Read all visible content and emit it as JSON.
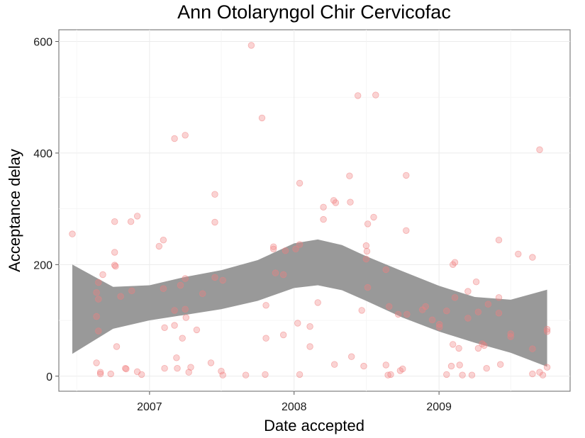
{
  "chart_data": {
    "type": "scatter",
    "title": "Ann Otolaryngol Chir Cervicofac",
    "xlabel": "Date accepted",
    "ylabel": "Acceptance delay",
    "x_ticks": [
      "2007",
      "2008",
      "2009"
    ],
    "y_ticks": [
      "0",
      "200",
      "400",
      "600"
    ],
    "xlim": [
      "2006-05-17",
      "2009-11-28"
    ],
    "ylim": [
      -27,
      621
    ],
    "grid": true,
    "point_color": "#f08080",
    "band_color": "#999999",
    "series": [
      {
        "values": [
          {
            "x": "2006-06-20",
            "y": 255
          },
          {
            "x": "2006-08-20",
            "y": 24
          },
          {
            "x": "2006-08-20",
            "y": 107
          },
          {
            "x": "2006-08-20",
            "y": 150
          },
          {
            "x": "2006-08-25",
            "y": 81
          },
          {
            "x": "2006-08-25",
            "y": 138
          },
          {
            "x": "2006-08-25",
            "y": 168
          },
          {
            "x": "2006-08-30",
            "y": 4
          },
          {
            "x": "2006-08-30",
            "y": 7
          },
          {
            "x": "2006-09-05",
            "y": 182
          },
          {
            "x": "2006-09-25",
            "y": 4
          },
          {
            "x": "2006-10-05",
            "y": 277
          },
          {
            "x": "2006-10-05",
            "y": 222
          },
          {
            "x": "2006-10-05",
            "y": 199
          },
          {
            "x": "2006-10-07",
            "y": 197
          },
          {
            "x": "2006-10-10",
            "y": 53
          },
          {
            "x": "2006-10-20",
            "y": 143
          },
          {
            "x": "2006-11-01",
            "y": 14
          },
          {
            "x": "2006-11-03",
            "y": 13
          },
          {
            "x": "2006-11-15",
            "y": 277
          },
          {
            "x": "2006-11-17",
            "y": 153
          },
          {
            "x": "2006-12-01",
            "y": 287
          },
          {
            "x": "2006-12-01",
            "y": 8
          },
          {
            "x": "2006-12-12",
            "y": 3
          },
          {
            "x": "2007-01-25",
            "y": 233
          },
          {
            "x": "2007-02-05",
            "y": 244
          },
          {
            "x": "2007-02-05",
            "y": 157
          },
          {
            "x": "2007-02-08",
            "y": 87
          },
          {
            "x": "2007-02-08",
            "y": 14
          },
          {
            "x": "2007-03-05",
            "y": 426
          },
          {
            "x": "2007-03-05",
            "y": 118
          },
          {
            "x": "2007-03-05",
            "y": 91
          },
          {
            "x": "2007-03-10",
            "y": 33
          },
          {
            "x": "2007-03-12",
            "y": 14
          },
          {
            "x": "2007-03-20",
            "y": 163
          },
          {
            "x": "2007-03-25",
            "y": 68
          },
          {
            "x": "2007-04-01",
            "y": 432
          },
          {
            "x": "2007-04-01",
            "y": 175
          },
          {
            "x": "2007-04-01",
            "y": 120
          },
          {
            "x": "2007-04-03",
            "y": 105
          },
          {
            "x": "2007-04-10",
            "y": 7
          },
          {
            "x": "2007-04-15",
            "y": 16
          },
          {
            "x": "2007-04-30",
            "y": 83
          },
          {
            "x": "2007-05-15",
            "y": 148
          },
          {
            "x": "2007-06-05",
            "y": 24
          },
          {
            "x": "2007-06-15",
            "y": 326
          },
          {
            "x": "2007-06-15",
            "y": 276
          },
          {
            "x": "2007-06-15",
            "y": 177
          },
          {
            "x": "2007-07-01",
            "y": 9
          },
          {
            "x": "2007-07-05",
            "y": 172
          },
          {
            "x": "2007-07-05",
            "y": 2
          },
          {
            "x": "2007-09-01",
            "y": 2
          },
          {
            "x": "2007-09-15",
            "y": 593
          },
          {
            "x": "2007-10-12",
            "y": 463
          },
          {
            "x": "2007-10-20",
            "y": 3
          },
          {
            "x": "2007-10-22",
            "y": 127
          },
          {
            "x": "2007-10-22",
            "y": 68
          },
          {
            "x": "2007-11-10",
            "y": 232
          },
          {
            "x": "2007-11-10",
            "y": 228
          },
          {
            "x": "2007-11-15",
            "y": 185
          },
          {
            "x": "2007-12-05",
            "y": 74
          },
          {
            "x": "2007-12-05",
            "y": 182
          },
          {
            "x": "2007-12-10",
            "y": 225
          },
          {
            "x": "2008-01-05",
            "y": 228
          },
          {
            "x": "2008-01-10",
            "y": 95
          },
          {
            "x": "2008-01-15",
            "y": 346
          },
          {
            "x": "2008-01-15",
            "y": 236
          },
          {
            "x": "2008-01-15",
            "y": 3
          },
          {
            "x": "2008-02-10",
            "y": 89
          },
          {
            "x": "2008-02-10",
            "y": 53
          },
          {
            "x": "2008-03-01",
            "y": 132
          },
          {
            "x": "2008-03-15",
            "y": 303
          },
          {
            "x": "2008-03-15",
            "y": 281
          },
          {
            "x": "2008-04-10",
            "y": 315
          },
          {
            "x": "2008-04-12",
            "y": 21
          },
          {
            "x": "2008-04-15",
            "y": 311
          },
          {
            "x": "2008-05-20",
            "y": 359
          },
          {
            "x": "2008-05-22",
            "y": 312
          },
          {
            "x": "2008-05-25",
            "y": 35
          },
          {
            "x": "2008-06-10",
            "y": 503
          },
          {
            "x": "2008-06-20",
            "y": 118
          },
          {
            "x": "2008-06-25",
            "y": 18
          },
          {
            "x": "2008-07-01",
            "y": 234
          },
          {
            "x": "2008-07-01",
            "y": 210
          },
          {
            "x": "2008-07-03",
            "y": 224
          },
          {
            "x": "2008-07-05",
            "y": 273
          },
          {
            "x": "2008-07-05",
            "y": 159
          },
          {
            "x": "2008-07-20",
            "y": 285
          },
          {
            "x": "2008-07-25",
            "y": 504
          },
          {
            "x": "2008-08-20",
            "y": 191
          },
          {
            "x": "2008-08-20",
            "y": 20
          },
          {
            "x": "2008-08-25",
            "y": 2
          },
          {
            "x": "2008-08-28",
            "y": 125
          },
          {
            "x": "2008-09-01",
            "y": 3
          },
          {
            "x": "2008-09-20",
            "y": 111
          },
          {
            "x": "2008-09-25",
            "y": 10
          },
          {
            "x": "2008-10-01",
            "y": 13
          },
          {
            "x": "2008-10-10",
            "y": 360
          },
          {
            "x": "2008-10-10",
            "y": 261
          },
          {
            "x": "2008-10-12",
            "y": 111
          },
          {
            "x": "2008-11-20",
            "y": 119
          },
          {
            "x": "2008-11-28",
            "y": 125
          },
          {
            "x": "2008-12-15",
            "y": 101
          },
          {
            "x": "2009-01-02",
            "y": 93
          },
          {
            "x": "2009-01-02",
            "y": 88
          },
          {
            "x": "2009-01-20",
            "y": 3
          },
          {
            "x": "2009-01-20",
            "y": 117
          },
          {
            "x": "2009-02-01",
            "y": 18
          },
          {
            "x": "2009-02-05",
            "y": 57
          },
          {
            "x": "2009-02-05",
            "y": 200
          },
          {
            "x": "2009-02-10",
            "y": 204
          },
          {
            "x": "2009-02-10",
            "y": 141
          },
          {
            "x": "2009-02-20",
            "y": 50
          },
          {
            "x": "2009-02-22",
            "y": 20
          },
          {
            "x": "2009-03-01",
            "y": 2
          },
          {
            "x": "2009-03-15",
            "y": 152
          },
          {
            "x": "2009-03-15",
            "y": 104
          },
          {
            "x": "2009-03-25",
            "y": 2
          },
          {
            "x": "2009-04-05",
            "y": 169
          },
          {
            "x": "2009-04-10",
            "y": 115
          },
          {
            "x": "2009-04-10",
            "y": 50
          },
          {
            "x": "2009-04-20",
            "y": 58
          },
          {
            "x": "2009-04-25",
            "y": 55
          },
          {
            "x": "2009-05-01",
            "y": 14
          },
          {
            "x": "2009-05-05",
            "y": 129
          },
          {
            "x": "2009-06-01",
            "y": 244
          },
          {
            "x": "2009-06-01",
            "y": 141
          },
          {
            "x": "2009-06-01",
            "y": 113
          },
          {
            "x": "2009-06-05",
            "y": 21
          },
          {
            "x": "2009-07-01",
            "y": 76
          },
          {
            "x": "2009-07-01",
            "y": 71
          },
          {
            "x": "2009-07-20",
            "y": 219
          },
          {
            "x": "2009-08-25",
            "y": 4
          },
          {
            "x": "2009-08-25",
            "y": 213
          },
          {
            "x": "2009-08-25",
            "y": 49
          },
          {
            "x": "2009-09-12",
            "y": 406
          },
          {
            "x": "2009-09-12",
            "y": 7
          },
          {
            "x": "2009-09-20",
            "y": 2
          },
          {
            "x": "2009-10-01",
            "y": 16
          },
          {
            "x": "2009-10-01",
            "y": 84
          },
          {
            "x": "2009-10-01",
            "y": 80
          }
        ]
      }
    ],
    "smooth_band": {
      "x": [
        "2006-06-20",
        "2006-10-01",
        "2007-01-01",
        "2007-04-01",
        "2007-07-01",
        "2007-10-01",
        "2008-01-01",
        "2008-03-01",
        "2008-05-01",
        "2008-07-01",
        "2008-10-01",
        "2009-01-01",
        "2009-04-01",
        "2009-07-01",
        "2009-10-01"
      ],
      "lower": [
        40,
        85,
        100,
        110,
        120,
        135,
        158,
        163,
        154,
        135,
        105,
        80,
        60,
        42,
        17
      ],
      "upper": [
        200,
        160,
        163,
        178,
        190,
        208,
        238,
        245,
        235,
        215,
        188,
        162,
        142,
        137,
        155
      ]
    }
  }
}
